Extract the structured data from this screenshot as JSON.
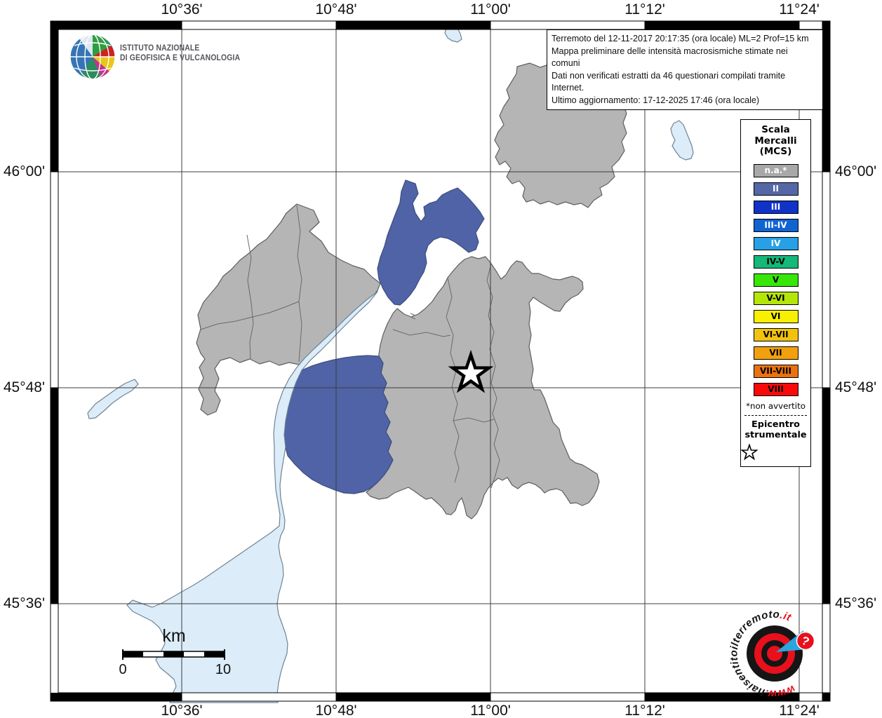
{
  "axes": {
    "lon_labels": [
      "10°36'",
      "10°48'",
      "11°00'",
      "11°12'",
      "11°24'"
    ],
    "lat_labels": [
      "46°00'",
      "45°48'",
      "45°36'"
    ]
  },
  "info_box": {
    "lines": [
      "Terremoto del 12-11-2017 20:17:35 (ora locale) ML=2 Prof=15 km",
      "Mappa preliminare delle intensità macrosismiche stimate nei comuni",
      "Dati non verificati estratti da 46 questionari compilati tramite Internet.",
      "Ultimo aggiornamento: 17-12-2025 17:46 (ora locale)"
    ]
  },
  "ingv_logo": {
    "line1": "ISTITUTO NAZIONALE",
    "line2": "DI GEOFISICA E VULCANOLOGIA"
  },
  "legend": {
    "title_lines": [
      "Scala",
      "Mercalli",
      "(MCS)"
    ],
    "items": [
      {
        "label": "n.a.*",
        "color": "#a8a8a8",
        "text_color": "#ffffff"
      },
      {
        "label": "II",
        "color": "#5468a8",
        "text_color": "#ffffff"
      },
      {
        "label": "III",
        "color": "#1032c8",
        "text_color": "#ffffff"
      },
      {
        "label": "III-IV",
        "color": "#1064d2",
        "text_color": "#ffffff"
      },
      {
        "label": "IV",
        "color": "#28a0e6",
        "text_color": "#ffffff"
      },
      {
        "label": "IV-V",
        "color": "#14b878",
        "text_color": "#000000"
      },
      {
        "label": "V",
        "color": "#38e60a",
        "text_color": "#000000"
      },
      {
        "label": "V-VI",
        "color": "#b4e60a",
        "text_color": "#000000"
      },
      {
        "label": "VI",
        "color": "#f8f000",
        "text_color": "#000000"
      },
      {
        "label": "VI-VII",
        "color": "#f2c30c",
        "text_color": "#000000"
      },
      {
        "label": "VII",
        "color": "#f2a00c",
        "text_color": "#000000"
      },
      {
        "label": "VII-VIII",
        "color": "#ea7210",
        "text_color": "#000000"
      },
      {
        "label": "VIII",
        "color": "#f80a0a",
        "text_color": "#000000"
      }
    ],
    "footnote": "*non avvertito",
    "epicenter_lines": [
      "Epicentro",
      "strumentale"
    ]
  },
  "scale_bar": {
    "unit": "km",
    "start": "0",
    "end": "10"
  },
  "map": {
    "colors": {
      "land": "#b5b5b5",
      "land_border": "#5f5f5f",
      "felt_ii": "#4f63a6",
      "lake": "#dcecf8",
      "lake_border": "#6e8495",
      "grid": "#3c3c3c"
    }
  },
  "watermark": {
    "www": "www.",
    "domain": "haisentitoilterremoto",
    "tld": ".it",
    "question": "?"
  }
}
